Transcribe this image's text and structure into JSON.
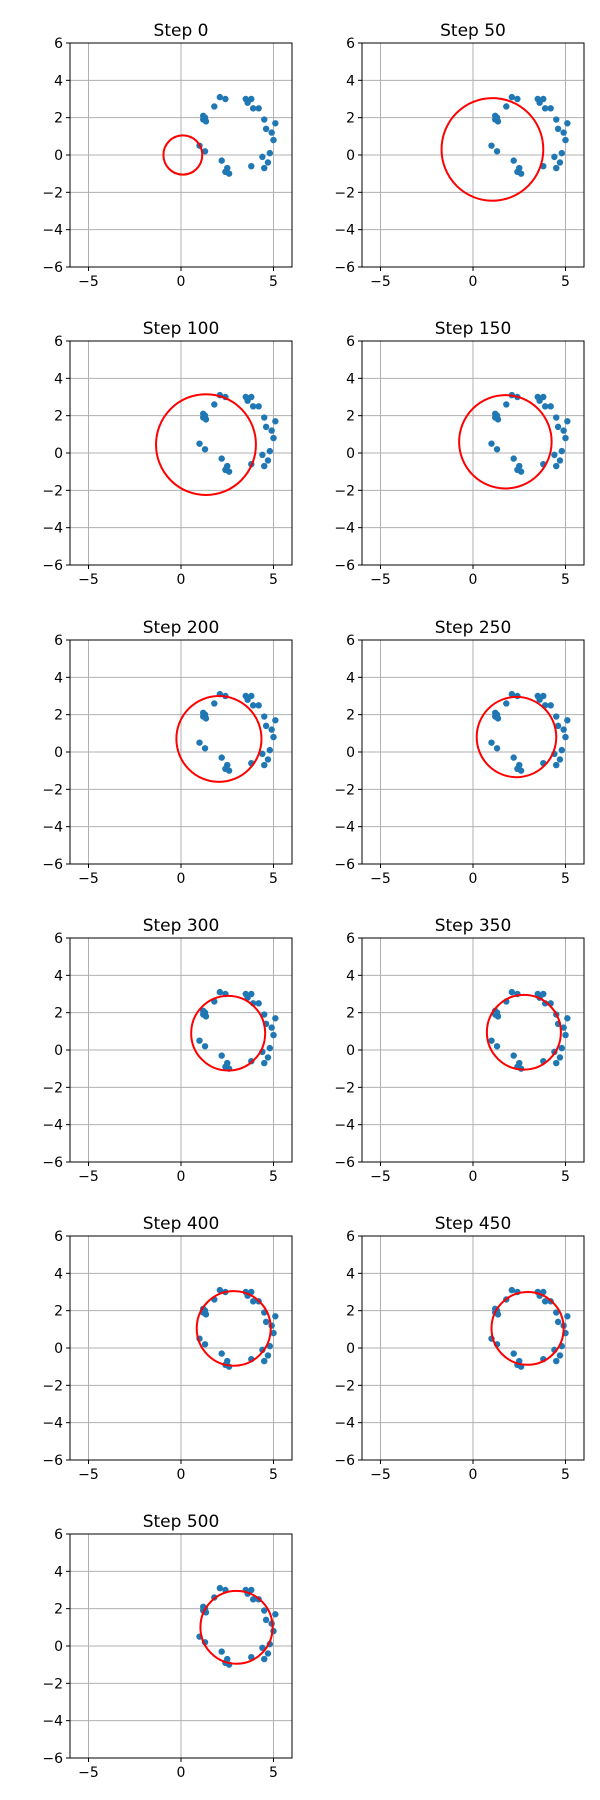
{
  "figure": {
    "axes": [
      {
        "title": "Step 0"
      },
      {
        "title": "Step 50"
      },
      {
        "title": "Step 100"
      },
      {
        "title": "Step 150"
      },
      {
        "title": "Step 200"
      },
      {
        "title": "Step 250"
      },
      {
        "title": "Step 300"
      },
      {
        "title": "Step 350"
      },
      {
        "title": "Step 400"
      },
      {
        "title": "Step 450"
      },
      {
        "title": "Step 500"
      }
    ]
  },
  "chart_data": {
    "type": "scatter",
    "title": "",
    "xlim": [
      -6,
      6
    ],
    "ylim": [
      -6,
      6
    ],
    "xticks": [
      -5,
      0,
      5
    ],
    "yticks": [
      6,
      4,
      2,
      0,
      -2,
      -4,
      -6
    ],
    "grid": true,
    "colors": {
      "points": "#1f77b4",
      "circle": "#ff0000",
      "grid": "#b0b0b0"
    },
    "points": [
      [
        2.1,
        3.1
      ],
      [
        2.4,
        3.0
      ],
      [
        3.5,
        3.0
      ],
      [
        3.8,
        3.0
      ],
      [
        3.6,
        2.8
      ],
      [
        1.8,
        2.6
      ],
      [
        3.9,
        2.5
      ],
      [
        4.2,
        2.5
      ],
      [
        1.2,
        2.1
      ],
      [
        1.3,
        2.0
      ],
      [
        1.2,
        1.9
      ],
      [
        1.35,
        1.8
      ],
      [
        4.5,
        1.9
      ],
      [
        5.1,
        1.7
      ],
      [
        4.6,
        1.4
      ],
      [
        4.9,
        1.2
      ],
      [
        5.0,
        0.8
      ],
      [
        1.0,
        0.5
      ],
      [
        1.3,
        0.2
      ],
      [
        4.8,
        0.1
      ],
      [
        4.4,
        -0.1
      ],
      [
        2.2,
        -0.3
      ],
      [
        3.8,
        -0.6
      ],
      [
        4.7,
        -0.4
      ],
      [
        4.5,
        -0.7
      ],
      [
        2.5,
        -0.7
      ],
      [
        2.4,
        -0.9
      ],
      [
        2.6,
        -1.0
      ]
    ],
    "panels": [
      {
        "step": 0,
        "center": [
          0.1,
          0.0
        ],
        "radius": 1.05
      },
      {
        "step": 50,
        "center": [
          1.05,
          0.3
        ],
        "radius": 2.75
      },
      {
        "step": 100,
        "center": [
          1.35,
          0.45
        ],
        "radius": 2.7
      },
      {
        "step": 150,
        "center": [
          1.75,
          0.6
        ],
        "radius": 2.5
      },
      {
        "step": 200,
        "center": [
          2.05,
          0.7
        ],
        "radius": 2.3
      },
      {
        "step": 250,
        "center": [
          2.35,
          0.8
        ],
        "radius": 2.15
      },
      {
        "step": 300,
        "center": [
          2.55,
          0.9
        ],
        "radius": 2.0
      },
      {
        "step": 350,
        "center": [
          2.75,
          0.95
        ],
        "radius": 2.0
      },
      {
        "step": 400,
        "center": [
          2.85,
          1.05
        ],
        "radius": 2.0
      },
      {
        "step": 450,
        "center": [
          2.95,
          1.05
        ],
        "radius": 1.95
      },
      {
        "step": 500,
        "center": [
          3.0,
          1.0
        ],
        "radius": 1.95
      }
    ]
  }
}
